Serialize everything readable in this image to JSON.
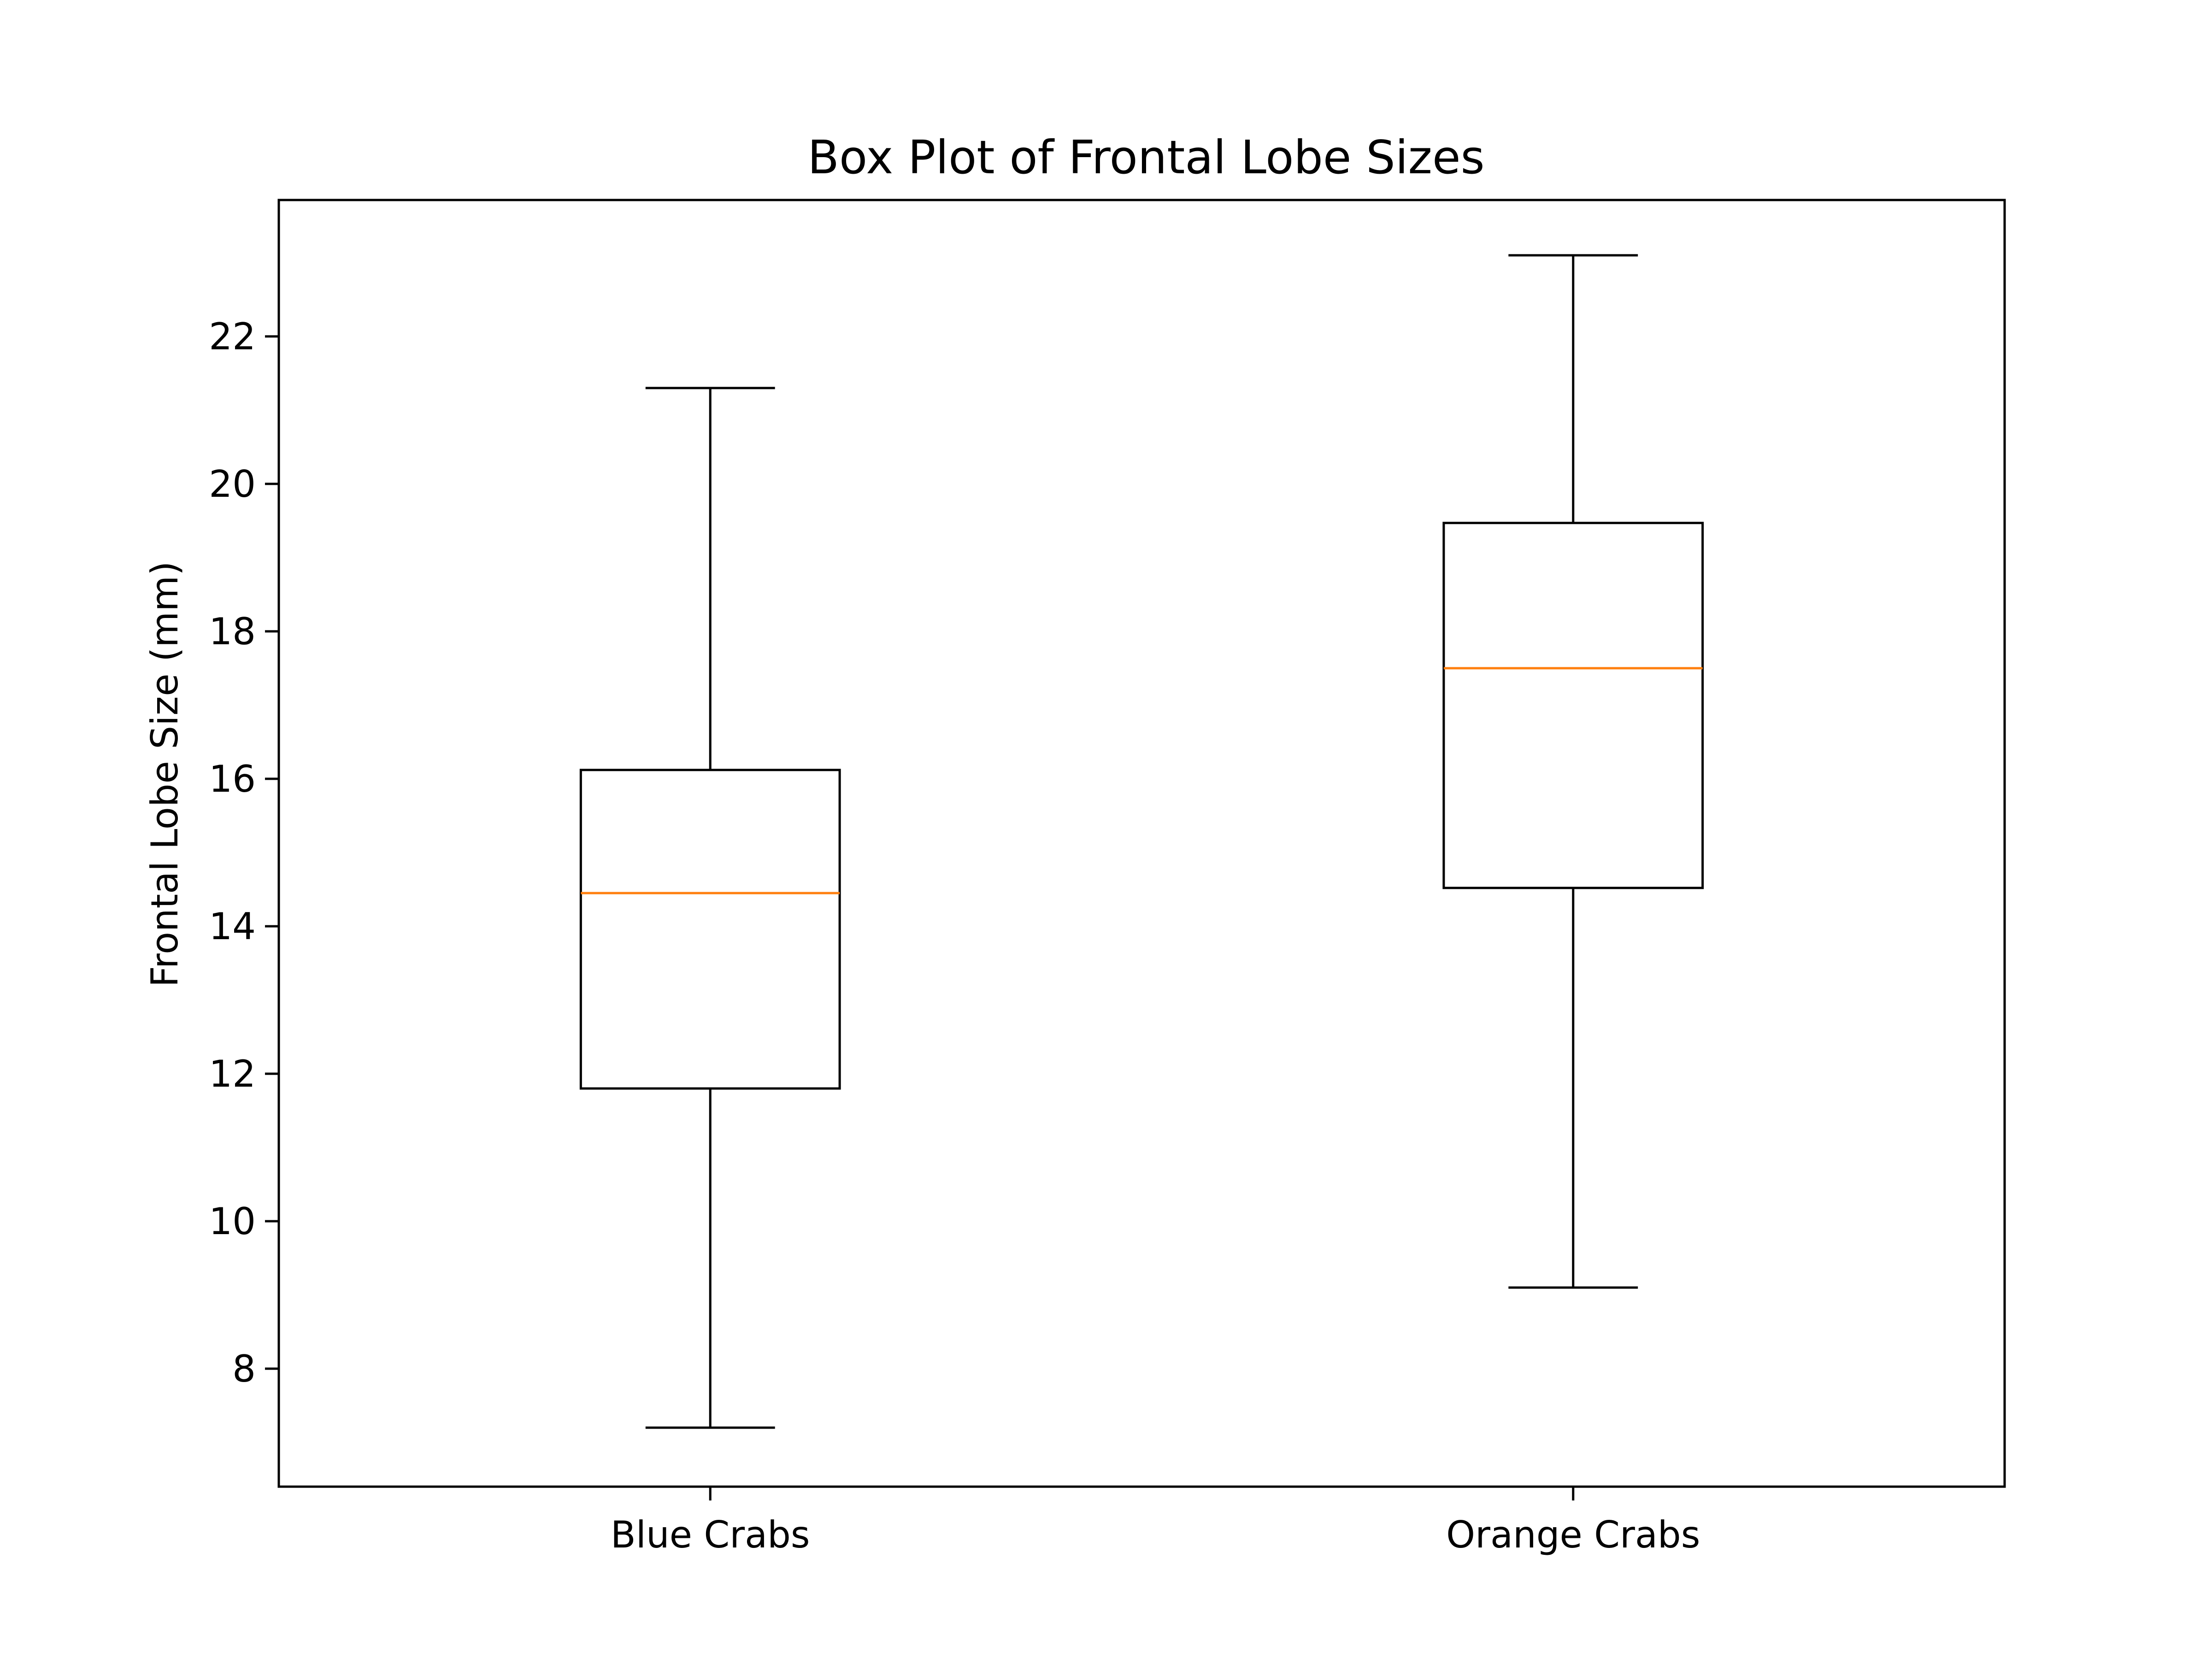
{
  "chart_data": {
    "type": "box",
    "title": "Box Plot of Frontal Lobe Sizes",
    "xlabel": "",
    "ylabel": "Frontal Lobe Size (mm)",
    "ylim": [
      6.4,
      23.85
    ],
    "yticks": [
      8,
      10,
      12,
      14,
      16,
      18,
      20,
      22
    ],
    "grid": false,
    "categories": [
      "Blue Crabs",
      "Orange Crabs"
    ],
    "boxes": [
      {
        "category": "Blue Crabs",
        "whisker_low": 7.2,
        "q1": 11.8,
        "median": 14.45,
        "q3": 16.12,
        "whisker_high": 21.3
      },
      {
        "category": "Orange Crabs",
        "whisker_low": 9.1,
        "q1": 14.52,
        "median": 17.5,
        "q3": 19.47,
        "whisker_high": 23.1
      }
    ],
    "colors": {
      "box": "#000000",
      "median": "#ff7f0e",
      "frame": "#000000",
      "background": "#ffffff"
    }
  }
}
